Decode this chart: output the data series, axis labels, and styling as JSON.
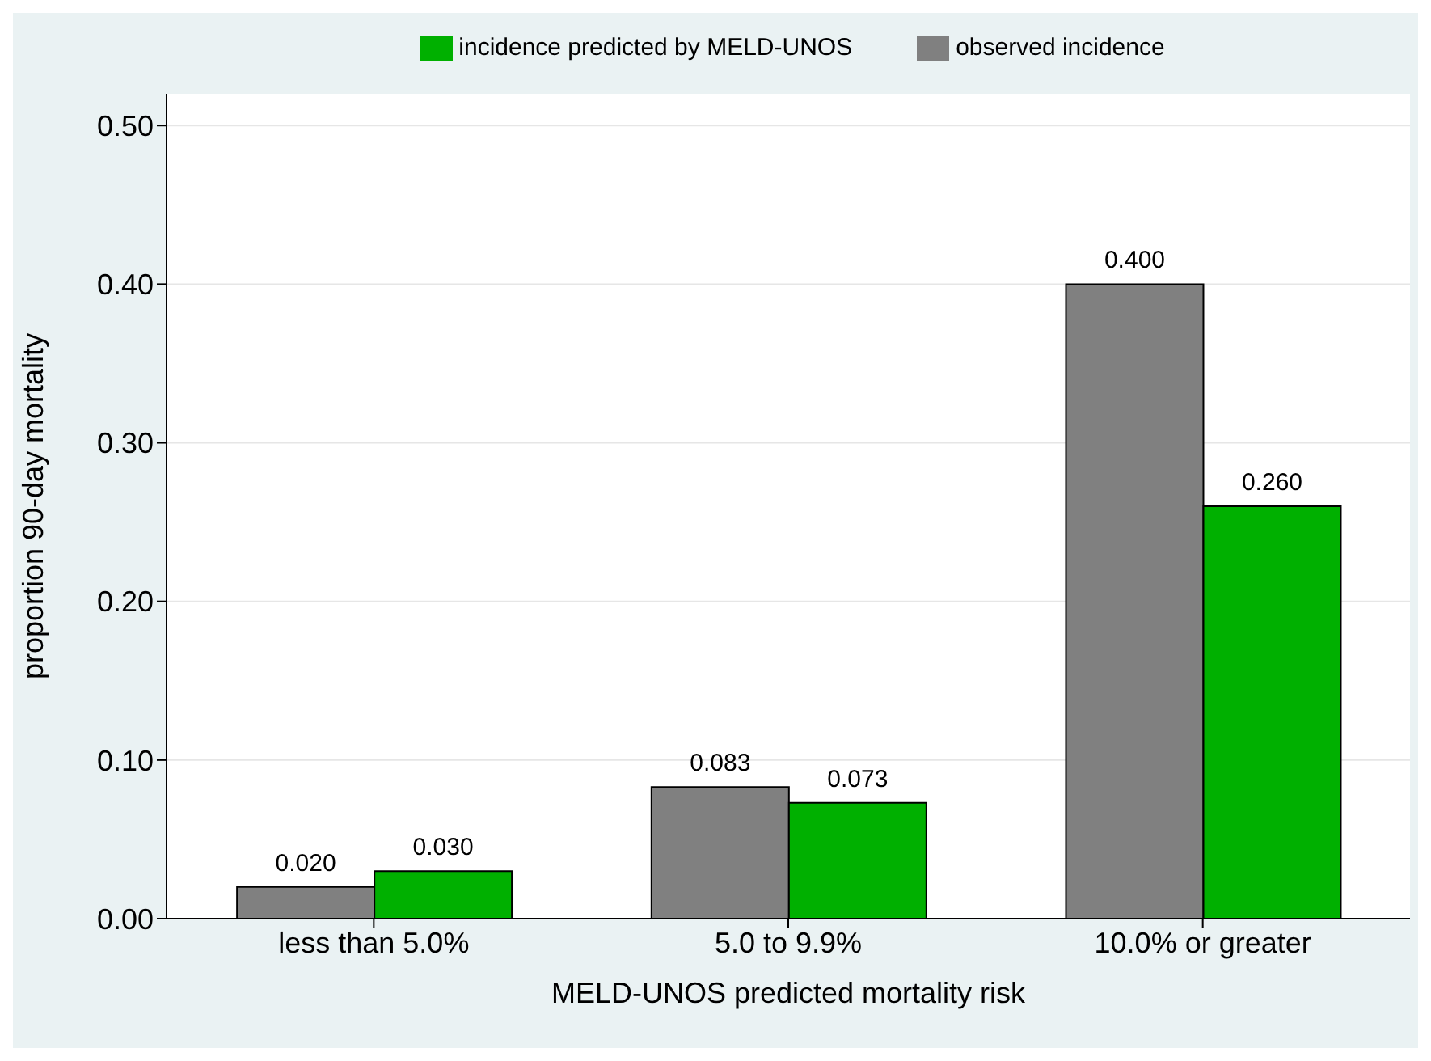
{
  "chart_data": {
    "type": "bar",
    "xlabel": "MELD-UNOS predicted mortality risk",
    "ylabel": "proportion 90-day mortality",
    "categories": [
      "less than 5.0%",
      "5.0 to 9.9%",
      "10.0% or greater"
    ],
    "series": [
      {
        "name": "observed incidence",
        "color": "#808080",
        "values": [
          0.02,
          0.083,
          0.4
        ],
        "value_labels": [
          "0.020",
          "0.083",
          "0.400"
        ]
      },
      {
        "name": "incidence predicted by MELD-UNOS",
        "color": "#00b000",
        "values": [
          0.03,
          0.073,
          0.26
        ],
        "value_labels": [
          "0.030",
          "0.073",
          "0.260"
        ]
      }
    ],
    "ylim": [
      0,
      0.52
    ],
    "yticks": [
      {
        "value": 0,
        "label": "0.00"
      },
      {
        "value": 0.1,
        "label": "0.10"
      },
      {
        "value": 0.2,
        "label": "0.20"
      },
      {
        "value": 0.3,
        "label": "0.30"
      },
      {
        "value": 0.4,
        "label": "0.40"
      },
      {
        "value": 0.5,
        "label": "0.50"
      }
    ],
    "grid": "y",
    "legend": "top"
  }
}
